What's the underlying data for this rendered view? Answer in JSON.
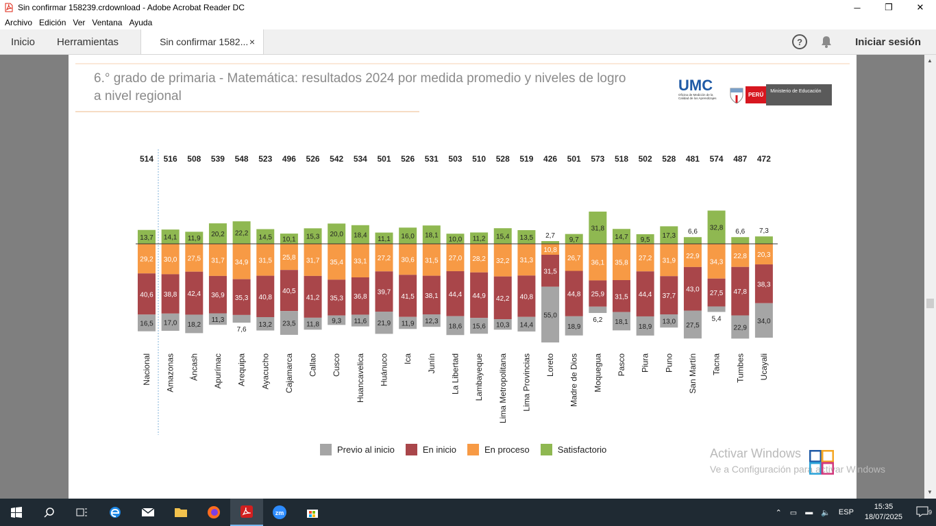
{
  "window": {
    "title": "Sin confirmar 158239.crdownload - Adobe Acrobat Reader DC",
    "minimize": "─",
    "maximize": "❐",
    "close": "✕"
  },
  "menu": [
    "Archivo",
    "Edición",
    "Ver",
    "Ventana",
    "Ayuda"
  ],
  "tabs": {
    "home": "Inicio",
    "tools": "Herramientas",
    "doc": "Sin confirmar 1582...",
    "doc_close": "×",
    "help": "?",
    "signin": "Iniciar sesión"
  },
  "document": {
    "title": "6.° grado de primaria - Matemática: resultados 2024 por medida promedio y niveles de logro a nivel regional",
    "logo_umc": "UMC",
    "logo_umc_sub": "Oficina de Medición de la Calidad de los Aprendizajes",
    "logo_peru": "PERÚ",
    "logo_minedu": "Ministerio de Educación"
  },
  "chart_data": {
    "type": "bar",
    "stacked": true,
    "diverging": true,
    "baseline_between": [
      "En proceso",
      "Satisfactorio"
    ],
    "categories": [
      "Nacional",
      "Amazonas",
      "Áncash",
      "Apurímac",
      "Arequipa",
      "Ayacucho",
      "Cajamarca",
      "Callao",
      "Cusco",
      "Huancavelica",
      "Huánuco",
      "Ica",
      "Junín",
      "La Libertad",
      "Lambayeque",
      "Lima Metropolitana",
      "Lima Provincias",
      "Loreto",
      "Madre de Dios",
      "Moquegua",
      "Pasco",
      "Piura",
      "Puno",
      "San Martín",
      "Tacna",
      "Tumbes",
      "Ucayali"
    ],
    "average_scores": [
      514,
      516,
      508,
      539,
      548,
      523,
      496,
      526,
      542,
      534,
      501,
      526,
      531,
      503,
      510,
      528,
      519,
      426,
      501,
      573,
      518,
      502,
      528,
      481,
      574,
      487,
      472
    ],
    "series": [
      {
        "name": "Previo al inicio",
        "color": "#a5a5a5",
        "values": [
          16.5,
          17.0,
          18.2,
          11.3,
          7.6,
          13.2,
          23.5,
          11.8,
          9.3,
          11.6,
          21.9,
          11.9,
          12.3,
          18.6,
          15.6,
          10.3,
          14.4,
          55.0,
          18.9,
          6.2,
          18.1,
          18.9,
          13.0,
          27.5,
          5.4,
          22.9,
          34.0
        ]
      },
      {
        "name": "En inicio",
        "color": "#a9464a",
        "values": [
          40.6,
          38.8,
          42.4,
          36.9,
          35.3,
          40.8,
          40.5,
          41.2,
          35.3,
          36.8,
          39.7,
          41.5,
          38.1,
          44.4,
          44.9,
          42.2,
          40.8,
          31.5,
          44.8,
          25.9,
          31.5,
          44.4,
          37.7,
          43.0,
          27.5,
          47.8,
          38.3
        ]
      },
      {
        "name": "En proceso",
        "color": "#f79a45",
        "values": [
          29.2,
          30.0,
          27.5,
          31.7,
          34.9,
          31.5,
          25.8,
          31.7,
          35.4,
          33.1,
          27.2,
          30.6,
          31.5,
          27.0,
          28.2,
          32.2,
          31.3,
          10.8,
          26.7,
          36.1,
          35.8,
          27.2,
          31.9,
          22.9,
          34.3,
          22.8,
          20.3
        ]
      },
      {
        "name": "Satisfactorio",
        "color": "#8fb851",
        "values": [
          13.7,
          14.1,
          11.9,
          20.2,
          22.2,
          14.5,
          10.1,
          15.3,
          20.0,
          18.4,
          11.1,
          16.0,
          18.1,
          10.0,
          11.2,
          15.4,
          13.5,
          2.7,
          9.7,
          31.8,
          14.7,
          9.5,
          17.3,
          6.6,
          32.8,
          6.6,
          7.3
        ]
      }
    ]
  },
  "watermark": {
    "line1": "Activar Windows",
    "line2": "Ve a Configuración para activar Windows"
  },
  "taskbar": {
    "lang": "ESP",
    "time": "15:35",
    "date": "18/07/2025",
    "notifications": "9"
  }
}
